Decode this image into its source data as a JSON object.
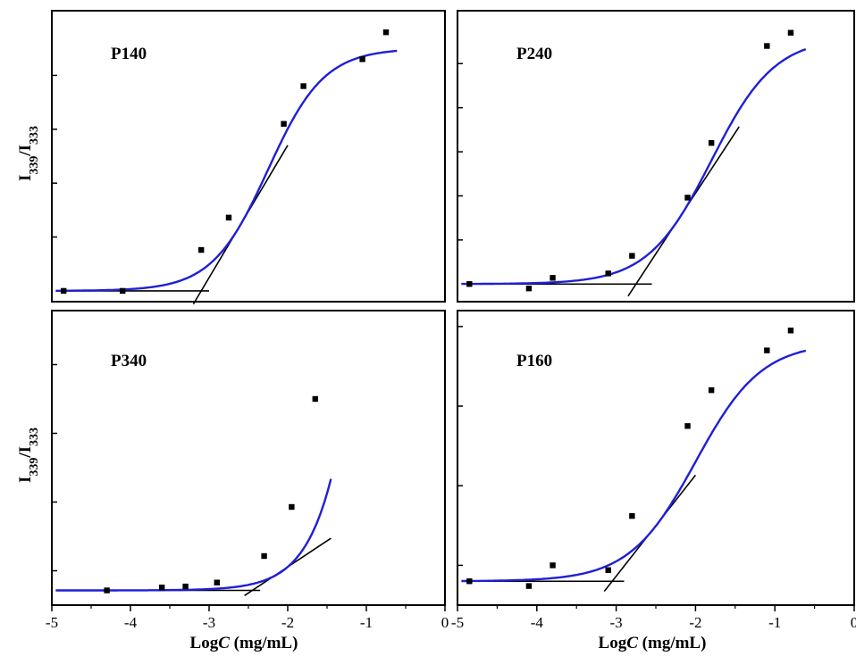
{
  "figure": {
    "xlabel_prefix": "Log",
    "xlabel_var": "C",
    "xlabel_unit": " (mg/mL)",
    "ylabel_main_1": "I",
    "ylabel_sub_1": "339",
    "ylabel_sep": "/I",
    "ylabel_sub_2": "333",
    "colors": {
      "fit": "#1f1fd6",
      "tangent": "#000000",
      "points": "#000000",
      "frame": "#000000"
    }
  },
  "chart_data": [
    {
      "type": "scatter",
      "title": "P140",
      "xlabel": "",
      "ylabel": "I339/I333",
      "xlim": [
        -5,
        0
      ],
      "show_x_tick_labels": false,
      "points": [
        [
          -4.85,
          0.0
        ],
        [
          -4.1,
          0.0
        ],
        [
          -3.1,
          0.38
        ],
        [
          -2.75,
          0.68
        ],
        [
          -2.05,
          1.55
        ],
        [
          -1.8,
          1.9
        ],
        [
          -1.05,
          2.15
        ],
        [
          -0.75,
          2.4
        ]
      ]
    },
    {
      "type": "scatter",
      "title": "P240",
      "xlabel": "",
      "ylabel": "",
      "xlim": [
        -5,
        0
      ],
      "show_x_tick_labels": false,
      "points": [
        [
          -4.85,
          0.0
        ],
        [
          -4.1,
          -0.05
        ],
        [
          -3.8,
          0.07
        ],
        [
          -3.1,
          0.12
        ],
        [
          -2.8,
          0.32
        ],
        [
          -2.1,
          0.98
        ],
        [
          -1.8,
          1.6
        ],
        [
          -1.1,
          2.7
        ],
        [
          -0.8,
          2.85
        ]
      ]
    },
    {
      "type": "scatter",
      "title": "P340",
      "xlabel": "LogC (mg/mL)",
      "ylabel": "I339/I333",
      "xlim": [
        -5,
        0
      ],
      "x_ticks": [
        -5,
        -4,
        -3,
        -2,
        -1,
        0
      ],
      "points": [
        [
          -4.3,
          0.0
        ],
        [
          -3.6,
          0.03
        ],
        [
          -3.3,
          0.04
        ],
        [
          -2.9,
          0.08
        ],
        [
          -2.3,
          0.35
        ],
        [
          -1.95,
          0.85
        ],
        [
          -1.65,
          1.95
        ]
      ]
    },
    {
      "type": "scatter",
      "title": "P160",
      "xlabel": "LogC (mg/mL)",
      "ylabel": "",
      "xlim": [
        -5,
        0
      ],
      "x_ticks": [
        -5,
        -4,
        -3,
        -2,
        -1,
        0
      ],
      "points": [
        [
          -4.85,
          0.0
        ],
        [
          -4.1,
          -0.06
        ],
        [
          -3.8,
          0.2
        ],
        [
          -3.1,
          0.14
        ],
        [
          -2.8,
          0.82
        ],
        [
          -2.1,
          1.95
        ],
        [
          -1.8,
          2.4
        ],
        [
          -1.1,
          2.9
        ],
        [
          -0.8,
          3.15
        ]
      ]
    }
  ]
}
